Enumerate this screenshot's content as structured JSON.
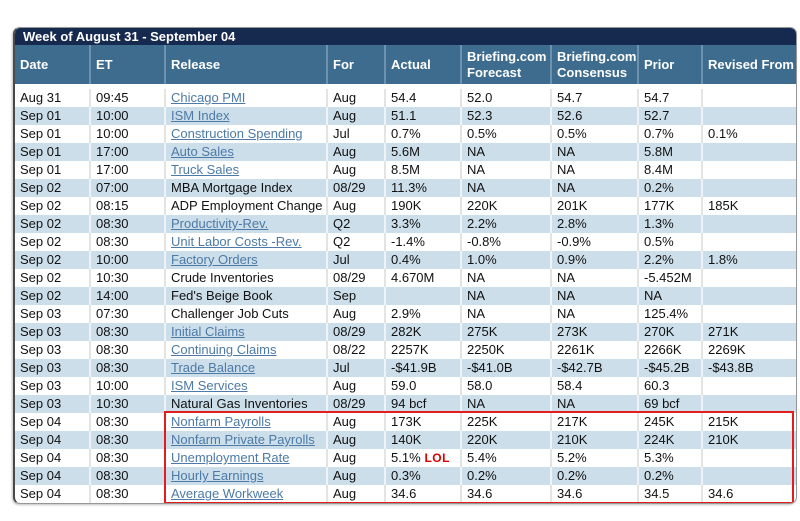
{
  "title": "Week of August 31 - September 04",
  "columns": [
    "Date",
    "ET",
    "Release",
    "For",
    "Actual",
    "Briefing.com Forecast",
    "Briefing.com Consensus",
    "Prior",
    "Revised From"
  ],
  "rows": [
    {
      "date": "Aug 31",
      "et": "09:45",
      "release": "Chicago PMI",
      "is_link": true,
      "for": "Aug",
      "actual": "54.4",
      "forecast": "52.0",
      "consensus": "54.7",
      "prior": "54.7",
      "revised": ""
    },
    {
      "date": "Sep 01",
      "et": "10:00",
      "release": "ISM Index",
      "is_link": true,
      "for": "Aug",
      "actual": "51.1",
      "forecast": "52.3",
      "consensus": "52.6",
      "prior": "52.7",
      "revised": ""
    },
    {
      "date": "Sep 01",
      "et": "10:00",
      "release": "Construction Spending",
      "is_link": true,
      "for": "Jul",
      "actual": "0.7%",
      "forecast": "0.5%",
      "consensus": "0.5%",
      "prior": "0.7%",
      "revised": "0.1%"
    },
    {
      "date": "Sep 01",
      "et": "17:00",
      "release": "Auto Sales",
      "is_link": true,
      "for": "Aug",
      "actual": "5.6M",
      "forecast": "NA",
      "consensus": "NA",
      "prior": "5.8M",
      "revised": ""
    },
    {
      "date": "Sep 01",
      "et": "17:00",
      "release": "Truck Sales",
      "is_link": true,
      "for": "Aug",
      "actual": "8.5M",
      "forecast": "NA",
      "consensus": "NA",
      "prior": "8.4M",
      "revised": ""
    },
    {
      "date": "Sep 02",
      "et": "07:00",
      "release": "MBA Mortgage Index",
      "is_link": false,
      "for": "08/29",
      "actual": "11.3%",
      "forecast": "NA",
      "consensus": "NA",
      "prior": "0.2%",
      "revised": ""
    },
    {
      "date": "Sep 02",
      "et": "08:15",
      "release": "ADP Employment Change",
      "is_link": false,
      "for": "Aug",
      "actual": "190K",
      "forecast": "220K",
      "consensus": "201K",
      "prior": "177K",
      "revised": "185K"
    },
    {
      "date": "Sep 02",
      "et": "08:30",
      "release": "Productivity-Rev.",
      "is_link": true,
      "for": "Q2",
      "actual": "3.3%",
      "forecast": "2.2%",
      "consensus": "2.8%",
      "prior": "1.3%",
      "revised": ""
    },
    {
      "date": "Sep 02",
      "et": "08:30",
      "release": "Unit Labor Costs -Rev.",
      "is_link": true,
      "for": "Q2",
      "actual": "-1.4%",
      "forecast": "-0.8%",
      "consensus": "-0.9%",
      "prior": "0.5%",
      "revised": ""
    },
    {
      "date": "Sep 02",
      "et": "10:00",
      "release": "Factory Orders",
      "is_link": true,
      "for": "Jul",
      "actual": "0.4%",
      "forecast": "1.0%",
      "consensus": "0.9%",
      "prior": "2.2%",
      "revised": "1.8%"
    },
    {
      "date": "Sep 02",
      "et": "10:30",
      "release": "Crude Inventories",
      "is_link": false,
      "for": "08/29",
      "actual": "4.670M",
      "forecast": "NA",
      "consensus": "NA",
      "prior": "-5.452M",
      "revised": ""
    },
    {
      "date": "Sep 02",
      "et": "14:00",
      "release": "Fed's Beige Book",
      "is_link": false,
      "for": "Sep",
      "actual": "",
      "forecast": "NA",
      "consensus": "NA",
      "prior": "NA",
      "revised": ""
    },
    {
      "date": "Sep 03",
      "et": "07:30",
      "release": "Challenger Job Cuts",
      "is_link": false,
      "for": "Aug",
      "actual": "2.9%",
      "forecast": "NA",
      "consensus": "NA",
      "prior": "125.4%",
      "revised": ""
    },
    {
      "date": "Sep 03",
      "et": "08:30",
      "release": "Initial Claims",
      "is_link": true,
      "for": "08/29",
      "actual": "282K",
      "forecast": "275K",
      "consensus": "273K",
      "prior": "270K",
      "revised": "271K"
    },
    {
      "date": "Sep 03",
      "et": "08:30",
      "release": "Continuing Claims",
      "is_link": true,
      "for": "08/22",
      "actual": "2257K",
      "forecast": "2250K",
      "consensus": "2261K",
      "prior": "2266K",
      "revised": "2269K"
    },
    {
      "date": "Sep 03",
      "et": "08:30",
      "release": "Trade Balance",
      "is_link": true,
      "for": "Jul",
      "actual": "-$41.9B",
      "forecast": "-$41.0B",
      "consensus": "-$42.7B",
      "prior": "-$45.2B",
      "revised": "-$43.8B"
    },
    {
      "date": "Sep 03",
      "et": "10:00",
      "release": "ISM Services",
      "is_link": true,
      "for": "Aug",
      "actual": "59.0",
      "forecast": "58.0",
      "consensus": "58.4",
      "prior": "60.3",
      "revised": ""
    },
    {
      "date": "Sep 03",
      "et": "10:30",
      "release": "Natural Gas Inventories",
      "is_link": false,
      "for": "08/29",
      "actual": "94 bcf",
      "forecast": "NA",
      "consensus": "NA",
      "prior": "69 bcf",
      "revised": ""
    },
    {
      "date": "Sep 04",
      "et": "08:30",
      "release": "Nonfarm Payrolls",
      "is_link": true,
      "for": "Aug",
      "actual": "173K",
      "forecast": "225K",
      "consensus": "217K",
      "prior": "245K",
      "revised": "215K",
      "highlighted": true
    },
    {
      "date": "Sep 04",
      "et": "08:30",
      "release": "Nonfarm Private Payrolls",
      "is_link": true,
      "for": "Aug",
      "actual": "140K",
      "forecast": "220K",
      "consensus": "210K",
      "prior": "224K",
      "revised": "210K",
      "highlighted": true
    },
    {
      "date": "Sep 04",
      "et": "08:30",
      "release": "Unemployment Rate",
      "is_link": true,
      "for": "Aug",
      "actual": "5.1%",
      "forecast": "5.4%",
      "consensus": "5.2%",
      "prior": "5.3%",
      "revised": "",
      "highlighted": true,
      "annotation": "LOL"
    },
    {
      "date": "Sep 04",
      "et": "08:30",
      "release": "Hourly Earnings",
      "is_link": true,
      "for": "Aug",
      "actual": "0.3%",
      "forecast": "0.2%",
      "consensus": "0.2%",
      "prior": "0.2%",
      "revised": "",
      "highlighted": true
    },
    {
      "date": "Sep 04",
      "et": "08:30",
      "release": "Average Workweek",
      "is_link": true,
      "for": "Aug",
      "actual": "34.6",
      "forecast": "34.6",
      "consensus": "34.6",
      "prior": "34.5",
      "revised": "34.6",
      "highlighted": true
    }
  ],
  "colors": {
    "title_bar_bg": "#16294E",
    "header_bg": "#3D6C8F",
    "stripe_bg": "#CCDEEA",
    "link_color": "#4D7AA6",
    "annotation_red": "#E00000",
    "highlight_border": "#E21D1D"
  }
}
